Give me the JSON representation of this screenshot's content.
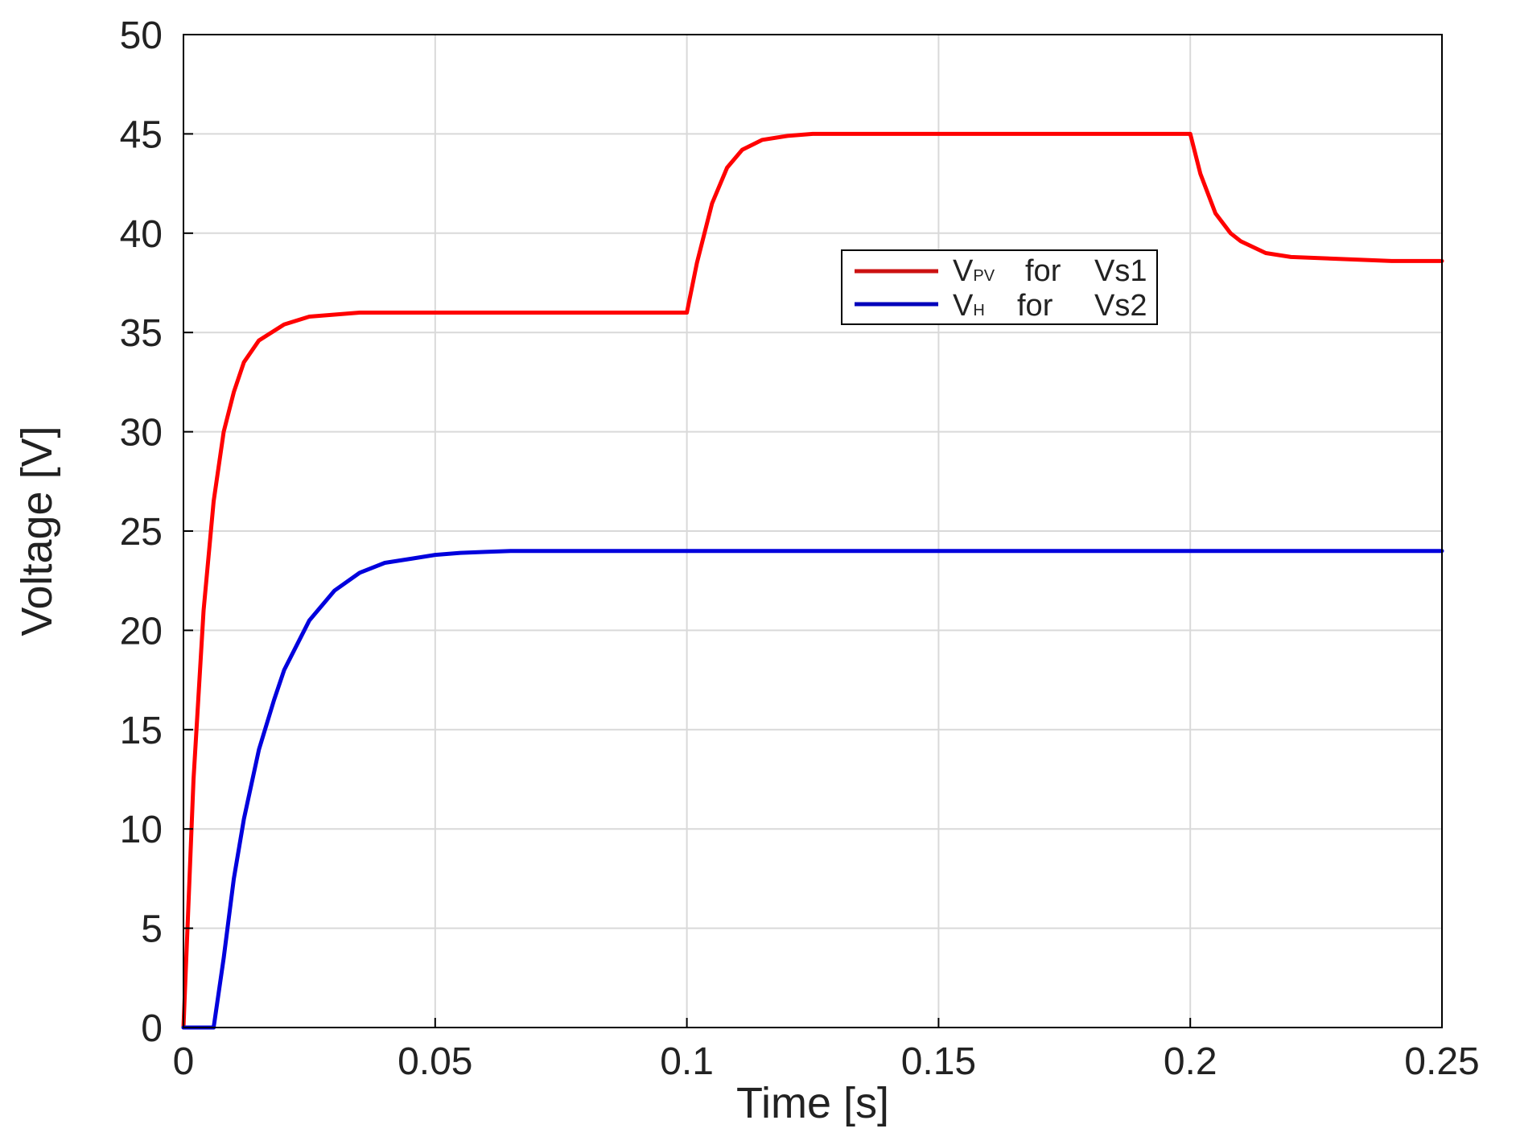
{
  "chart_data": {
    "type": "line",
    "title": "",
    "xlabel": "Time [s]",
    "ylabel": "Voltage [V]",
    "xlim": [
      0,
      0.25
    ],
    "ylim": [
      0,
      50
    ],
    "xticks": [
      0,
      0.05,
      0.1,
      0.15,
      0.2,
      0.25
    ],
    "xtick_labels": [
      "0",
      "0.05",
      "0.1",
      "0.15",
      "0.2",
      "0.25"
    ],
    "yticks": [
      0,
      5,
      10,
      15,
      20,
      25,
      30,
      35,
      40,
      45,
      50
    ],
    "ytick_labels": [
      "0",
      "5",
      "10",
      "15",
      "20",
      "25",
      "30",
      "35",
      "40",
      "45",
      "50"
    ],
    "grid": true,
    "legend_position": "upper-center",
    "series": [
      {
        "name": "V_PV for Vs1",
        "legend_main": "V",
        "legend_sub": "PV",
        "legend_rest": "for",
        "legend_tail": "Vs1",
        "color": "#ff0000",
        "x": [
          0,
          0.002,
          0.004,
          0.006,
          0.008,
          0.01,
          0.012,
          0.015,
          0.02,
          0.025,
          0.03,
          0.035,
          0.04,
          0.05,
          0.06,
          0.07,
          0.08,
          0.09,
          0.1,
          0.102,
          0.105,
          0.108,
          0.111,
          0.115,
          0.12,
          0.125,
          0.13,
          0.14,
          0.15,
          0.16,
          0.17,
          0.18,
          0.19,
          0.2,
          0.202,
          0.205,
          0.208,
          0.21,
          0.215,
          0.22,
          0.23,
          0.24,
          0.25
        ],
        "y": [
          0,
          12.5,
          21.0,
          26.5,
          30.0,
          32.0,
          33.5,
          34.6,
          35.4,
          35.8,
          35.9,
          36.0,
          36.0,
          36.0,
          36.0,
          36.0,
          36.0,
          36.0,
          36.0,
          38.5,
          41.5,
          43.3,
          44.2,
          44.7,
          44.9,
          45.0,
          45.0,
          45.0,
          45.0,
          45.0,
          45.0,
          45.0,
          45.0,
          45.0,
          43.0,
          41.0,
          40.0,
          39.6,
          39.0,
          38.8,
          38.7,
          38.6,
          38.6
        ]
      },
      {
        "name": "V_H for Vs2",
        "legend_main": "V",
        "legend_sub": "H",
        "legend_rest": "for",
        "legend_tail": "Vs2",
        "color": "#0000dd",
        "x": [
          0,
          0.006,
          0.008,
          0.01,
          0.012,
          0.015,
          0.018,
          0.02,
          0.025,
          0.03,
          0.035,
          0.04,
          0.045,
          0.05,
          0.055,
          0.06,
          0.065,
          0.07,
          0.075,
          0.08,
          0.09,
          0.1,
          0.12,
          0.15,
          0.18,
          0.2,
          0.22,
          0.25
        ],
        "y": [
          0,
          0,
          3.5,
          7.5,
          10.5,
          14.0,
          16.5,
          18.0,
          20.5,
          22.0,
          22.9,
          23.4,
          23.6,
          23.8,
          23.9,
          23.95,
          24.0,
          24.0,
          24.0,
          24.0,
          24.0,
          24.0,
          24.0,
          24.0,
          24.0,
          24.0,
          24.0,
          24.0
        ]
      }
    ]
  }
}
